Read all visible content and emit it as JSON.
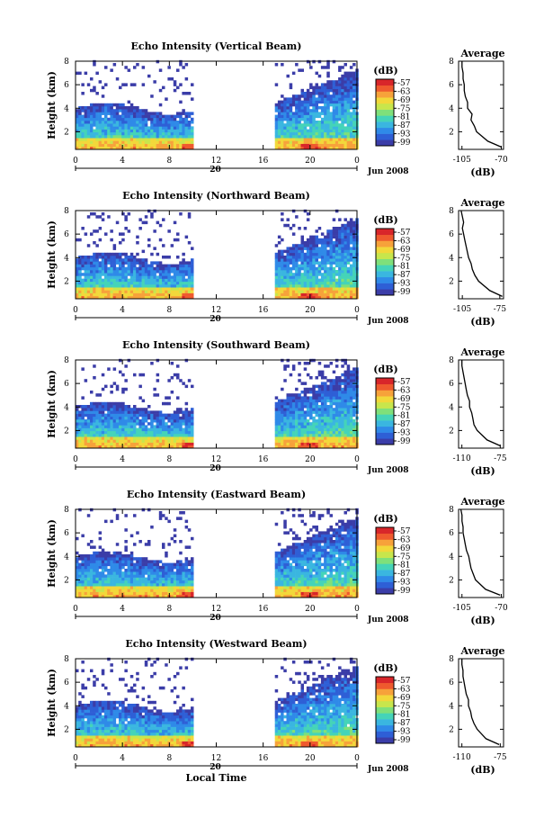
{
  "figure": {
    "xlabel": "Local Time",
    "date_label": "Jun 2008",
    "day_label": "20",
    "colorbar_unit": "(dB)",
    "colorbar_ticks": [
      "-57",
      "-63",
      "-69",
      "-75",
      "-81",
      "-87",
      "-93",
      "-99"
    ],
    "colorscale": [
      "#3b3da8",
      "#2e5fd6",
      "#2f8ae8",
      "#3ab6e0",
      "#45d4b8",
      "#7fe07a",
      "#c8e64c",
      "#f2d83a",
      "#f7a23a",
      "#ef5a2e",
      "#d8262a"
    ]
  },
  "chart_data": [
    {
      "type": "heatmap",
      "title": "Echo Intensity (Vertical Beam)",
      "ylabel": "Height (km)",
      "x_ticks": [
        "0",
        "4",
        "8",
        "12",
        "16",
        "20",
        "0"
      ],
      "y_ticks": [
        "2",
        "4",
        "6",
        "8"
      ],
      "xlim": [
        0,
        24
      ],
      "ylim": [
        0.5,
        8
      ],
      "data_gap_hours": [
        10,
        17
      ],
      "color_range_db": [
        -99,
        -57
      ],
      "profile": {
        "title": "Average",
        "xlabel": "(dB)",
        "x_ticks": [
          "-105",
          "-70"
        ],
        "xlim": [
          -108,
          -68
        ],
        "y_ticks": [
          "2",
          "4",
          "6",
          "8"
        ],
        "ylim": [
          0.5,
          8
        ],
        "heights": [
          0.7,
          1.2,
          2.0,
          2.5,
          3.0,
          3.5,
          4.0,
          4.5,
          5.0,
          5.5,
          6.0,
          6.5,
          7.0,
          7.5,
          8.0
        ],
        "db": [
          -70,
          -82,
          -92,
          -94,
          -97,
          -96,
          -100,
          -100,
          -102,
          -103,
          -103,
          -104,
          -104,
          -105,
          -105
        ]
      }
    },
    {
      "type": "heatmap",
      "title": "Echo Intensity (Northward Beam)",
      "ylabel": "Height (km)",
      "x_ticks": [
        "0",
        "4",
        "8",
        "12",
        "16",
        "20",
        "0"
      ],
      "y_ticks": [
        "2",
        "4",
        "6",
        "8"
      ],
      "xlim": [
        0,
        24
      ],
      "ylim": [
        0.5,
        8
      ],
      "data_gap_hours": [
        10,
        17
      ],
      "color_range_db": [
        -99,
        -57
      ],
      "profile": {
        "title": "Average",
        "xlabel": "(dB)",
        "x_ticks": [
          "-105",
          "-75"
        ],
        "xlim": [
          -108,
          -72
        ],
        "y_ticks": [
          "2",
          "4",
          "6",
          "8"
        ],
        "ylim": [
          0.5,
          8
        ],
        "heights": [
          0.7,
          1.2,
          2.0,
          2.5,
          3.0,
          3.5,
          4.0,
          4.5,
          5.0,
          5.5,
          6.0,
          6.5,
          7.0,
          7.5,
          8.0
        ],
        "db": [
          -73,
          -83,
          -92,
          -95,
          -97,
          -98,
          -100,
          -101,
          -102,
          -103,
          -104,
          -105,
          -104,
          -105,
          -106
        ]
      }
    },
    {
      "type": "heatmap",
      "title": "Echo Intensity (Southward Beam)",
      "ylabel": "Height (km)",
      "x_ticks": [
        "0",
        "4",
        "8",
        "12",
        "16",
        "20",
        "0"
      ],
      "y_ticks": [
        "2",
        "4",
        "6",
        "8"
      ],
      "xlim": [
        0,
        24
      ],
      "ylim": [
        0.5,
        8
      ],
      "data_gap_hours": [
        10,
        17
      ],
      "color_range_db": [
        -99,
        -57
      ],
      "profile": {
        "title": "Average",
        "xlabel": "(dB)",
        "x_ticks": [
          "-110",
          "-75"
        ],
        "xlim": [
          -113,
          -72
        ],
        "y_ticks": [
          "2",
          "4",
          "6",
          "8"
        ],
        "ylim": [
          0.5,
          8
        ],
        "heights": [
          0.7,
          1.2,
          2.0,
          2.5,
          3.0,
          3.5,
          4.0,
          4.5,
          5.0,
          5.5,
          6.0,
          6.5,
          7.0,
          7.5,
          8.0
        ],
        "db": [
          -75,
          -87,
          -96,
          -99,
          -100,
          -101,
          -103,
          -103,
          -105,
          -106,
          -107,
          -108,
          -109,
          -110,
          -110
        ]
      }
    },
    {
      "type": "heatmap",
      "title": "Echo Intensity (Eastward Beam)",
      "ylabel": "Height (km)",
      "x_ticks": [
        "0",
        "4",
        "8",
        "12",
        "16",
        "20",
        "0"
      ],
      "y_ticks": [
        "2",
        "4",
        "6",
        "8"
      ],
      "xlim": [
        0,
        24
      ],
      "ylim": [
        0.5,
        8
      ],
      "data_gap_hours": [
        10,
        17
      ],
      "color_range_db": [
        -99,
        -57
      ],
      "profile": {
        "title": "Average",
        "xlabel": "(dB)",
        "x_ticks": [
          "-105",
          "-70"
        ],
        "xlim": [
          -108,
          -68
        ],
        "y_ticks": [
          "2",
          "4",
          "6",
          "8"
        ],
        "ylim": [
          0.5,
          8
        ],
        "heights": [
          0.7,
          1.2,
          2.0,
          2.5,
          3.0,
          3.5,
          4.0,
          4.5,
          5.0,
          5.5,
          6.0,
          6.5,
          7.0,
          7.5,
          8.0
        ],
        "db": [
          -71,
          -84,
          -93,
          -95,
          -97,
          -98,
          -99,
          -101,
          -102,
          -103,
          -104,
          -104,
          -105,
          -105,
          -106
        ]
      }
    },
    {
      "type": "heatmap",
      "title": "Echo Intensity (Westward Beam)",
      "ylabel": "Height (km)",
      "x_ticks": [
        "0",
        "4",
        "8",
        "12",
        "16",
        "20",
        "0"
      ],
      "y_ticks": [
        "2",
        "4",
        "6",
        "8"
      ],
      "xlim": [
        0,
        24
      ],
      "ylim": [
        0.5,
        8
      ],
      "data_gap_hours": [
        10,
        17
      ],
      "color_range_db": [
        -99,
        -57
      ],
      "profile": {
        "title": "Average",
        "xlabel": "(dB)",
        "x_ticks": [
          "-110",
          "-75"
        ],
        "xlim": [
          -113,
          -72
        ],
        "y_ticks": [
          "2",
          "4",
          "6",
          "8"
        ],
        "ylim": [
          0.5,
          8
        ],
        "heights": [
          0.7,
          1.2,
          2.0,
          2.5,
          3.0,
          3.5,
          4.0,
          4.5,
          5.0,
          5.5,
          6.0,
          6.5,
          7.0,
          7.5,
          8.0
        ],
        "db": [
          -76,
          -88,
          -96,
          -99,
          -101,
          -102,
          -104,
          -104,
          -106,
          -107,
          -108,
          -109,
          -109,
          -110,
          -110
        ]
      }
    }
  ]
}
